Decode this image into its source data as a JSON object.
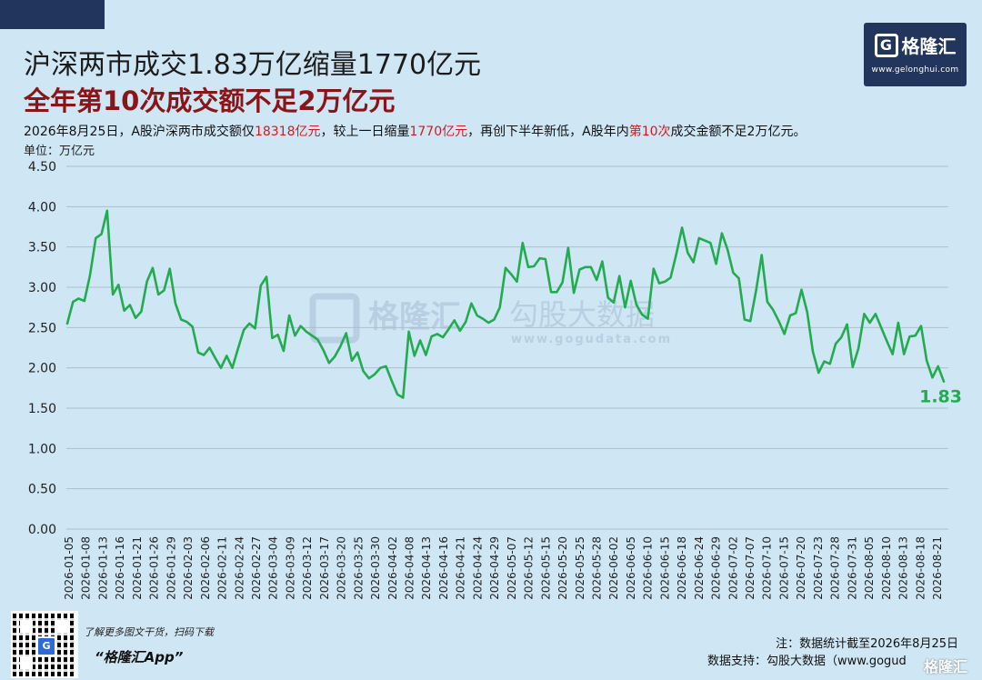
{
  "header": {
    "title": "沪深两市成交1.83万亿缩量1770亿元",
    "subtitle": "全年第10次成交额不足2万亿元",
    "desc_parts": [
      {
        "text": "2026年8月25日，A股沪深两市成交额仅",
        "hl": false
      },
      {
        "text": "18318亿元",
        "hl": true
      },
      {
        "text": "，较上一日缩量",
        "hl": false
      },
      {
        "text": "1770亿元",
        "hl": true
      },
      {
        "text": "，再创下半年新低，A股年内",
        "hl": false
      },
      {
        "text": "第10次",
        "hl": true
      },
      {
        "text": "成交金额不足2万亿元。",
        "hl": false
      }
    ],
    "unit": "单位：万亿元"
  },
  "logo": {
    "letter": "G",
    "name": "格隆汇",
    "url": "www.gelonghui.com"
  },
  "watermark": {
    "brand": "格隆汇",
    "partner": "勾股大数据",
    "url": "www.gogudata.com"
  },
  "footer": {
    "promo_line1": "了解更多图文干货，扫码下载",
    "promo_line2": "“格隆汇App”",
    "note": "注：数据统计截至2026年8月25日",
    "support": "数据支持：勾股大数据（www.gogud",
    "corner_mark": "格隆汇"
  },
  "colors": {
    "line": "#22ab4f",
    "title_sub": "#8a1418",
    "highlight": "#d8191d",
    "background": "#cfe6f4",
    "logo_bg": "#22355c"
  },
  "chart_data": {
    "type": "line",
    "ylim": [
      0,
      4.5
    ],
    "yticks": [
      "0.00",
      "0.50",
      "1.00",
      "1.50",
      "2.00",
      "2.50",
      "3.00",
      "3.50",
      "4.00",
      "4.50"
    ],
    "grid": true,
    "x_tick_labels": [
      "2026-01-05",
      "2026-01-08",
      "2026-01-13",
      "2026-01-16",
      "2026-01-21",
      "2026-01-26",
      "2026-01-29",
      "2026-02-03",
      "2026-02-06",
      "2026-02-11",
      "2026-02-24",
      "2026-02-27",
      "2026-03-04",
      "2026-03-09",
      "2026-03-12",
      "2026-03-17",
      "2026-03-20",
      "2026-03-25",
      "2026-03-30",
      "2026-04-02",
      "2026-04-08",
      "2026-04-13",
      "2026-04-16",
      "2026-04-21",
      "2026-04-24",
      "2026-04-29",
      "2026-05-07",
      "2026-05-12",
      "2026-05-15",
      "2026-05-20",
      "2026-05-25",
      "2026-05-28",
      "2026-06-02",
      "2026-06-05",
      "2026-06-10",
      "2026-06-15",
      "2026-06-18",
      "2026-06-24",
      "2026-06-29",
      "2026-07-02",
      "2026-07-07",
      "2026-07-10",
      "2026-07-15",
      "2026-07-20",
      "2026-07-23",
      "2026-07-28",
      "2026-07-31",
      "2026-08-05",
      "2026-08-10",
      "2026-08-13",
      "2026-08-18",
      "2026-08-21"
    ],
    "series": [
      {
        "values": [
          2.55,
          2.82,
          2.86,
          2.83,
          3.15,
          3.61,
          3.66,
          3.95,
          2.91,
          3.03,
          2.71,
          2.78,
          2.62,
          2.7,
          3.07,
          3.24,
          2.91,
          2.96,
          3.23,
          2.8,
          2.6,
          2.57,
          2.51,
          2.19,
          2.16,
          2.25,
          2.12,
          2.0,
          2.15,
          2.0,
          2.24,
          2.47,
          2.55,
          2.49,
          3.02,
          3.13,
          2.37,
          2.41,
          2.21,
          2.65,
          2.4,
          2.52,
          2.45,
          2.4,
          2.35,
          2.22,
          2.06,
          2.14,
          2.27,
          2.43,
          2.09,
          2.19,
          1.96,
          1.87,
          1.92,
          2.0,
          2.02,
          1.84,
          1.67,
          1.63,
          2.45,
          2.15,
          2.34,
          2.16,
          2.39,
          2.42,
          2.38,
          2.48,
          2.59,
          2.46,
          2.57,
          2.8,
          2.65,
          2.61,
          2.56,
          2.6,
          2.75,
          3.24,
          3.16,
          3.07,
          3.55,
          3.25,
          3.26,
          3.36,
          3.35,
          2.94,
          2.94,
          3.06,
          3.49,
          2.93,
          3.22,
          3.25,
          3.25,
          3.09,
          3.32,
          2.87,
          2.81,
          3.14,
          2.75,
          3.08,
          2.78,
          2.66,
          2.61,
          3.23,
          3.05,
          3.07,
          3.12,
          3.41,
          3.74,
          3.43,
          3.31,
          3.61,
          3.58,
          3.55,
          3.29,
          3.67,
          3.47,
          3.18,
          3.11,
          2.6,
          2.58,
          2.95,
          3.4,
          2.82,
          2.72,
          2.58,
          2.42,
          2.65,
          2.68,
          2.97,
          2.69,
          2.2,
          1.94,
          2.08,
          2.05,
          2.3,
          2.38,
          2.54,
          2.01,
          2.24,
          2.67,
          2.56,
          2.67,
          2.5,
          2.33,
          2.17,
          2.56,
          2.17,
          2.39,
          2.4,
          2.52,
          2.09,
          1.88,
          2.02,
          1.83
        ]
      }
    ],
    "end_label": "1.83"
  }
}
